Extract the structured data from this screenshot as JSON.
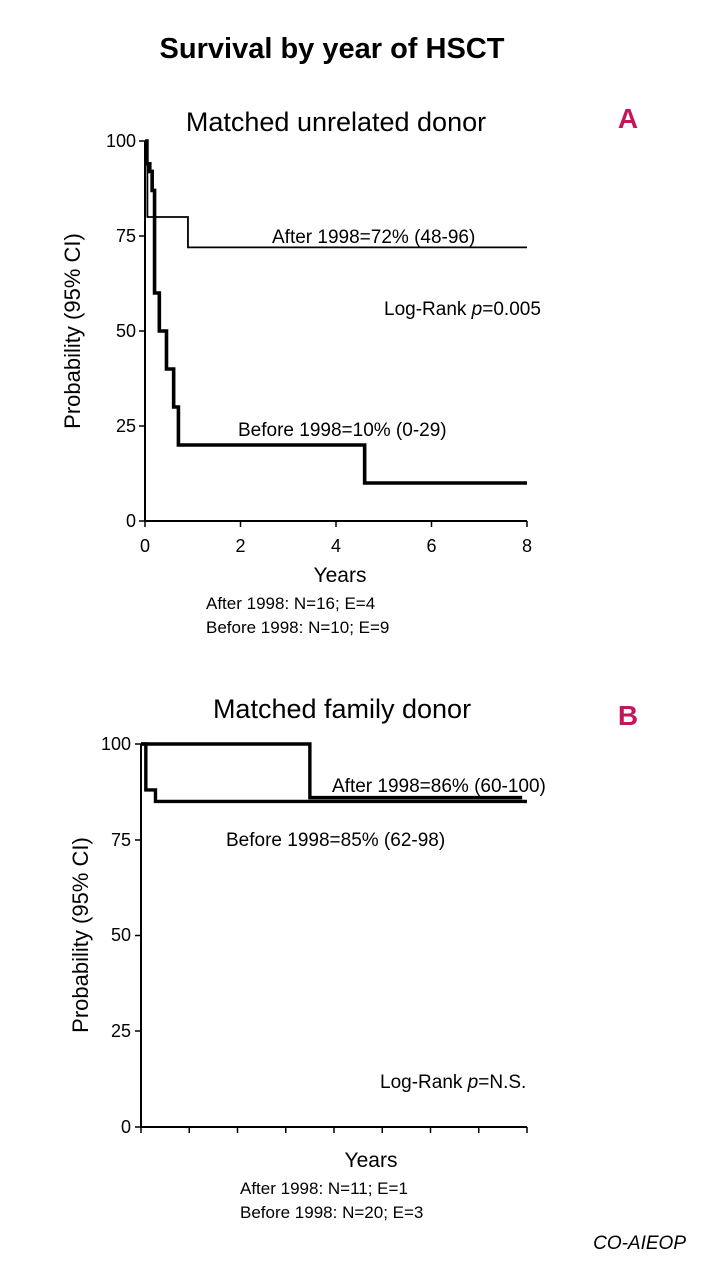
{
  "figure": {
    "title": "Survival by year of HSCT",
    "credit": "CO-AIEOP",
    "accent_color": "#c2185b"
  },
  "chart_data": [
    {
      "type": "line",
      "panel_label": "A",
      "title": "Matched unrelated donor",
      "xlabel": "Years",
      "ylabel": "Probability (95% CI)",
      "xlim": [
        0,
        8
      ],
      "ylim": [
        0,
        100
      ],
      "xticks": [
        "0",
        "2",
        "4",
        "6",
        "8"
      ],
      "yticks": [
        "0",
        "25",
        "50",
        "75",
        "100"
      ],
      "logrank": {
        "prefix": "Log-Rank ",
        "p": "p",
        "value": "=0.005"
      },
      "footnotes": [
        "After 1998: N=16; E=4",
        "Before 1998: N=10; E=9"
      ],
      "series": [
        {
          "name": "After 1998",
          "label": "After 1998=72% (48-96)",
          "weight": "thin",
          "x": [
            0,
            0.05,
            0.9,
            8
          ],
          "y": [
            100,
            80,
            72,
            72
          ]
        },
        {
          "name": "Before 1998",
          "label": "Before 1998=10% (0-29)",
          "weight": "thick",
          "x": [
            0,
            0.04,
            0.1,
            0.15,
            0.2,
            0.3,
            0.45,
            0.6,
            0.7,
            0.8,
            4.6,
            8
          ],
          "y": [
            100,
            94,
            92,
            87,
            60,
            50,
            40,
            30,
            20,
            20,
            10,
            10
          ]
        }
      ]
    },
    {
      "type": "line",
      "panel_label": "B",
      "title": "Matched family donor",
      "xlabel": "Years",
      "ylabel": "Probability (95% CI)",
      "xlim": [
        0,
        8
      ],
      "ylim": [
        0,
        100
      ],
      "xticks": [
        "",
        "",
        "",
        "",
        "",
        "",
        "",
        ""
      ],
      "yticks": [
        "0",
        "25",
        "50",
        "75",
        "100"
      ],
      "logrank": {
        "prefix": "Log-Rank ",
        "p": "p",
        "value": "=N.S."
      },
      "footnotes": [
        "After 1998: N=11; E=1",
        "Before 1998: N=20; E=3"
      ],
      "series": [
        {
          "name": "After 1998",
          "label": "After 1998=86% (60-100)",
          "weight": "thick",
          "x": [
            0,
            3.5,
            3.5,
            7.9
          ],
          "y": [
            100,
            100,
            86,
            86
          ]
        },
        {
          "name": "Before 1998",
          "label": "Before 1998=85% (62-98)",
          "weight": "thick",
          "x": [
            0,
            0.1,
            0.3,
            8
          ],
          "y": [
            100,
            88,
            85,
            85
          ]
        }
      ]
    }
  ]
}
